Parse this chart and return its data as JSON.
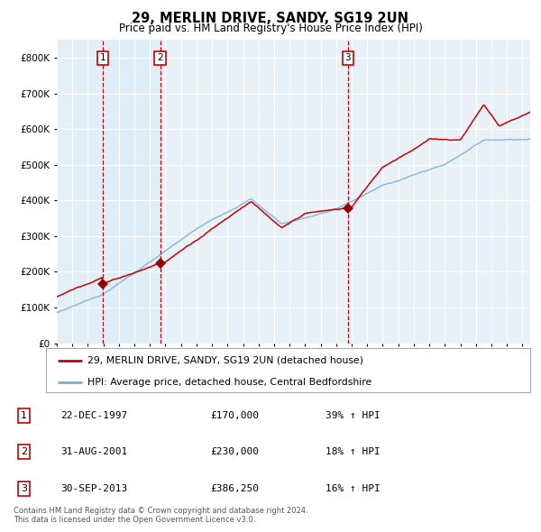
{
  "title": "29, MERLIN DRIVE, SANDY, SG19 2UN",
  "subtitle": "Price paid vs. HM Land Registry's House Price Index (HPI)",
  "footer": "Contains HM Land Registry data © Crown copyright and database right 2024.\nThis data is licensed under the Open Government Licence v3.0.",
  "legend_line1": "29, MERLIN DRIVE, SANDY, SG19 2UN (detached house)",
  "legend_line2": "HPI: Average price, detached house, Central Bedfordshire",
  "transactions": [
    {
      "num": 1,
      "date": "22-DEC-1997",
      "price": 170000,
      "pct": "39%",
      "dir": "↑",
      "year": 1997.97
    },
    {
      "num": 2,
      "date": "31-AUG-2001",
      "price": 230000,
      "pct": "18%",
      "dir": "↑",
      "year": 2001.66
    },
    {
      "num": 3,
      "date": "30-SEP-2013",
      "price": 386250,
      "pct": "16%",
      "dir": "↑",
      "year": 2013.75
    }
  ],
  "hpi_line_color": "#7ab0d4",
  "price_line_color": "#cc0000",
  "dot_color": "#990000",
  "vline_color": "#cc0000",
  "shade_color": "#ddeef8",
  "plot_bg_color": "#e8f0f8",
  "grid_color": "#ffffff",
  "ylim": [
    0,
    850000
  ],
  "xlim_start": 1995.0,
  "xlim_end": 2025.5,
  "yticks": [
    0,
    100000,
    200000,
    300000,
    400000,
    500000,
    600000,
    700000,
    800000
  ],
  "ylabels": [
    "£0",
    "£100K",
    "£200K",
    "£300K",
    "£400K",
    "£500K",
    "£600K",
    "£700K",
    "£800K"
  ]
}
